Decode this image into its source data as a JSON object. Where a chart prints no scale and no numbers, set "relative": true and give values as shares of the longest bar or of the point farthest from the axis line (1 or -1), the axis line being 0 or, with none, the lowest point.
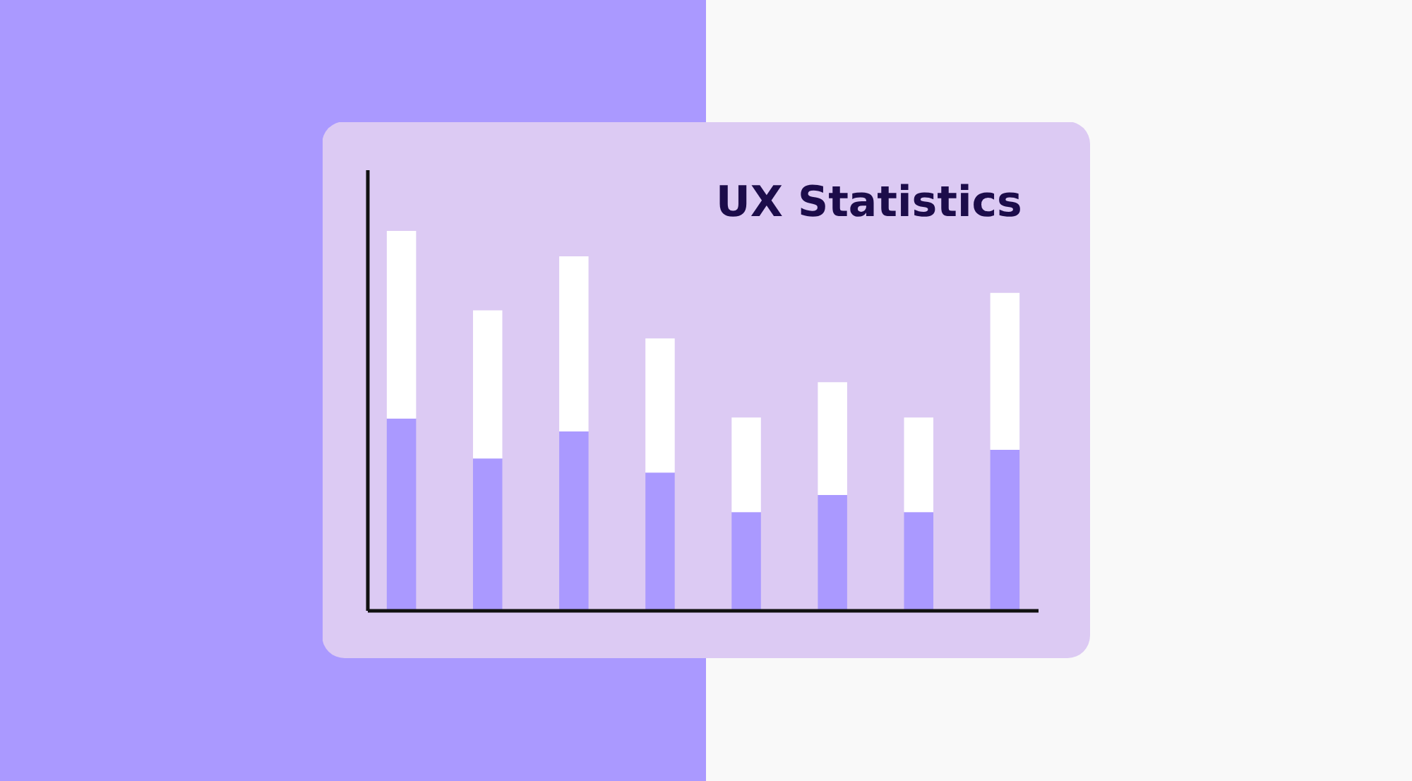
{
  "chart_data": {
    "type": "bar",
    "title": "UX Statistics",
    "relative": true,
    "stacked": true,
    "categories": [
      null,
      null,
      null,
      null,
      null,
      null,
      null,
      null
    ],
    "series": [
      {
        "color": "#aa99ff",
        "values": [
          0.506,
          0.401,
          0.472,
          0.364,
          0.26,
          0.305,
          0.26,
          0.424
        ]
      },
      {
        "color": "#ffffff",
        "values": [
          0.494,
          0.39,
          0.461,
          0.353,
          0.249,
          0.297,
          0.249,
          0.413
        ]
      }
    ],
    "grid": false
  }
}
